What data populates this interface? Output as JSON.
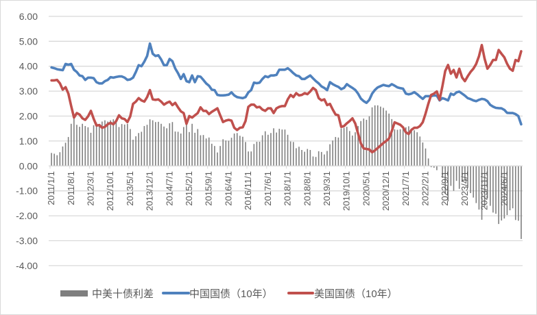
{
  "chart_data": {
    "type": "bar+line",
    "title": "",
    "xlabel": "",
    "ylabel": "",
    "ylim": [
      -4,
      6
    ],
    "yticks": [
      "6.00",
      "5.00",
      "4.00",
      "3.00",
      "2.00",
      "1.00",
      "0.00",
      "-1.00",
      "-2.00",
      "-3.00",
      "-4.00"
    ],
    "grid": true,
    "legend_position": "bottom",
    "x_start": "2011/1",
    "x_frequency": "monthly",
    "x_tick_labels": [
      "2011/1/1",
      "2011/8/1",
      "2012/3/1",
      "2012/10/1",
      "2013/5/1",
      "2013/12/1",
      "2014/7/1",
      "2015/2/1",
      "2015/9/1",
      "2016/4/1",
      "2016/11/1",
      "2017/6/1",
      "2018/1/1",
      "2018/8/1",
      "2019/3/1",
      "2019/10/1",
      "2020/5/1",
      "2020/12/1",
      "2021/7/1",
      "2022/2/1",
      "2022/9/1",
      "2023/4/1",
      "2023/11/1",
      "2024/6/1"
    ],
    "series": [
      {
        "name": "中美十债利差",
        "type": "bar",
        "color": "#7f7f7f",
        "values": [
          0.52,
          0.49,
          0.43,
          0.55,
          0.78,
          0.93,
          1.16,
          1.69,
          1.92,
          1.65,
          1.57,
          1.69,
          1.6,
          1.55,
          1.33,
          1.63,
          1.74,
          1.67,
          1.78,
          1.83,
          1.78,
          1.83,
          1.87,
          1.77,
          1.56,
          1.68,
          1.66,
          1.69,
          1.48,
          1.05,
          1.19,
          1.32,
          1.37,
          1.6,
          1.65,
          1.87,
          1.83,
          1.76,
          1.77,
          1.69,
          1.58,
          1.51,
          1.71,
          1.76,
          1.38,
          1.37,
          1.3,
          1.56,
          1.71,
          1.36,
          1.69,
          1.33,
          1.48,
          1.23,
          1.24,
          1.1,
          1.14,
          0.89,
          0.8,
          0.54,
          0.8,
          1.07,
          1.02,
          1.01,
          1.13,
          1.3,
          1.32,
          1.21,
          1.17,
          0.96,
          0.58,
          0.58,
          0.88,
          0.97,
          0.97,
          1.23,
          1.39,
          1.25,
          1.32,
          1.51,
          1.34,
          1.49,
          1.46,
          1.46,
          1.25,
          0.98,
          0.96,
          0.71,
          0.77,
          0.64,
          0.57,
          0.68,
          0.64,
          0.38,
          0.36,
          0.59,
          0.56,
          0.46,
          0.6,
          0.87,
          1.02,
          1.16,
          1.14,
          1.51,
          1.53,
          1.57,
          1.4,
          1.22,
          1.35,
          1.6,
          1.8,
          1.9,
          1.85,
          1.99,
          2.35,
          2.43,
          2.43,
          2.38,
          2.33,
          2.22,
          2.1,
          1.88,
          1.47,
          1.45,
          1.47,
          1.55,
          1.55,
          1.59,
          1.45,
          1.43,
          1.35,
          1.18,
          0.94,
          0.7,
          0.3,
          -0.05,
          -0.07,
          -0.17,
          -0.02,
          -0.48,
          -1.13,
          -1.42,
          -0.8,
          -1.0,
          -0.6,
          -0.92,
          -0.65,
          -0.58,
          -0.88,
          -1.09,
          -1.27,
          -1.49,
          -1.75,
          -2.16,
          -1.63,
          -1.3,
          -1.6,
          -1.87,
          -1.92,
          -2.33,
          -2.19,
          -2.11,
          -1.97,
          -1.78,
          -1.7,
          -2.17,
          -2.2,
          -2.93
        ]
      },
      {
        "name": "中国国债（10年）",
        "type": "line",
        "color": "#4f81bd",
        "values": [
          3.95,
          3.92,
          3.88,
          3.86,
          3.84,
          4.09,
          4.06,
          4.09,
          3.86,
          3.77,
          3.63,
          3.6,
          3.45,
          3.54,
          3.54,
          3.52,
          3.36,
          3.31,
          3.31,
          3.4,
          3.45,
          3.56,
          3.54,
          3.57,
          3.59,
          3.59,
          3.54,
          3.45,
          3.47,
          3.54,
          3.77,
          4.04,
          4.0,
          4.18,
          4.41,
          4.91,
          4.5,
          4.41,
          4.44,
          4.27,
          4.04,
          4.04,
          4.29,
          4.2,
          3.91,
          3.72,
          3.49,
          3.68,
          3.4,
          3.36,
          3.63,
          3.36,
          3.6,
          3.58,
          3.45,
          3.31,
          3.22,
          3.06,
          3.04,
          2.85,
          2.83,
          2.83,
          2.84,
          2.86,
          2.95,
          2.83,
          2.76,
          2.74,
          2.72,
          2.76,
          2.95,
          3.04,
          3.34,
          3.32,
          3.34,
          3.49,
          3.6,
          3.56,
          3.63,
          3.63,
          3.65,
          3.86,
          3.86,
          3.86,
          3.92,
          3.83,
          3.72,
          3.63,
          3.6,
          3.49,
          3.49,
          3.56,
          3.63,
          3.51,
          3.4,
          3.31,
          3.19,
          3.13,
          3.04,
          3.36,
          3.28,
          3.22,
          3.17,
          3.08,
          3.13,
          3.28,
          3.2,
          3.13,
          3.05,
          2.9,
          2.7,
          2.6,
          2.53,
          2.65,
          2.9,
          3.05,
          3.15,
          3.2,
          3.25,
          3.22,
          3.2,
          3.28,
          3.22,
          3.15,
          3.12,
          3.1,
          2.9,
          2.87,
          2.9,
          2.96,
          2.88,
          2.78,
          2.69,
          2.8,
          2.8,
          2.8,
          2.83,
          2.82,
          2.63,
          2.72,
          2.68,
          2.63,
          2.9,
          2.85,
          2.95,
          2.98,
          2.9,
          2.82,
          2.72,
          2.68,
          2.63,
          2.6,
          2.65,
          2.69,
          2.67,
          2.6,
          2.45,
          2.38,
          2.33,
          2.32,
          2.31,
          2.25,
          2.13,
          2.12,
          2.12,
          2.08,
          2.0,
          1.67
        ]
      },
      {
        "name": "美国国债（10年）",
        "type": "line",
        "color": "#c0504d",
        "values": [
          3.43,
          3.43,
          3.45,
          3.31,
          3.06,
          3.16,
          2.9,
          2.4,
          1.94,
          2.12,
          2.06,
          1.91,
          1.85,
          1.99,
          2.21,
          1.89,
          1.62,
          1.64,
          1.53,
          1.57,
          1.67,
          1.73,
          1.67,
          1.8,
          2.03,
          1.91,
          1.88,
          1.76,
          1.99,
          2.49,
          2.58,
          2.72,
          2.63,
          2.58,
          2.76,
          3.04,
          2.67,
          2.65,
          2.67,
          2.58,
          2.46,
          2.53,
          2.58,
          2.44,
          2.53,
          2.35,
          2.19,
          2.12,
          1.69,
          2.0,
          1.94,
          2.03,
          2.12,
          2.35,
          2.21,
          2.21,
          2.08,
          2.17,
          2.24,
          2.31,
          2.03,
          1.76,
          1.82,
          1.85,
          1.82,
          1.53,
          1.44,
          1.53,
          1.55,
          1.8,
          2.37,
          2.46,
          2.46,
          2.35,
          2.37,
          2.26,
          2.21,
          2.31,
          2.31,
          2.12,
          2.31,
          2.37,
          2.4,
          2.4,
          2.67,
          2.85,
          2.76,
          2.92,
          2.83,
          2.85,
          2.92,
          2.88,
          2.99,
          3.13,
          3.04,
          2.72,
          2.63,
          2.67,
          2.44,
          2.49,
          2.26,
          2.06,
          2.03,
          1.57,
          1.6,
          1.71,
          1.8,
          1.91,
          1.7,
          1.3,
          0.9,
          0.7,
          0.68,
          0.66,
          0.55,
          0.62,
          0.72,
          0.82,
          0.92,
          1.0,
          1.1,
          1.4,
          1.75,
          1.7,
          1.65,
          1.55,
          1.35,
          1.28,
          1.45,
          1.53,
          1.53,
          1.6,
          1.75,
          2.1,
          2.5,
          2.85,
          2.9,
          2.99,
          2.65,
          3.2,
          3.81,
          4.05,
          3.7,
          3.85,
          3.55,
          3.9,
          3.55,
          3.4,
          3.6,
          3.77,
          3.9,
          4.09,
          4.4,
          4.85,
          4.3,
          3.9,
          4.05,
          4.25,
          4.25,
          4.65,
          4.5,
          4.36,
          4.1,
          3.9,
          3.82,
          4.25,
          4.2,
          4.6
        ]
      }
    ]
  }
}
